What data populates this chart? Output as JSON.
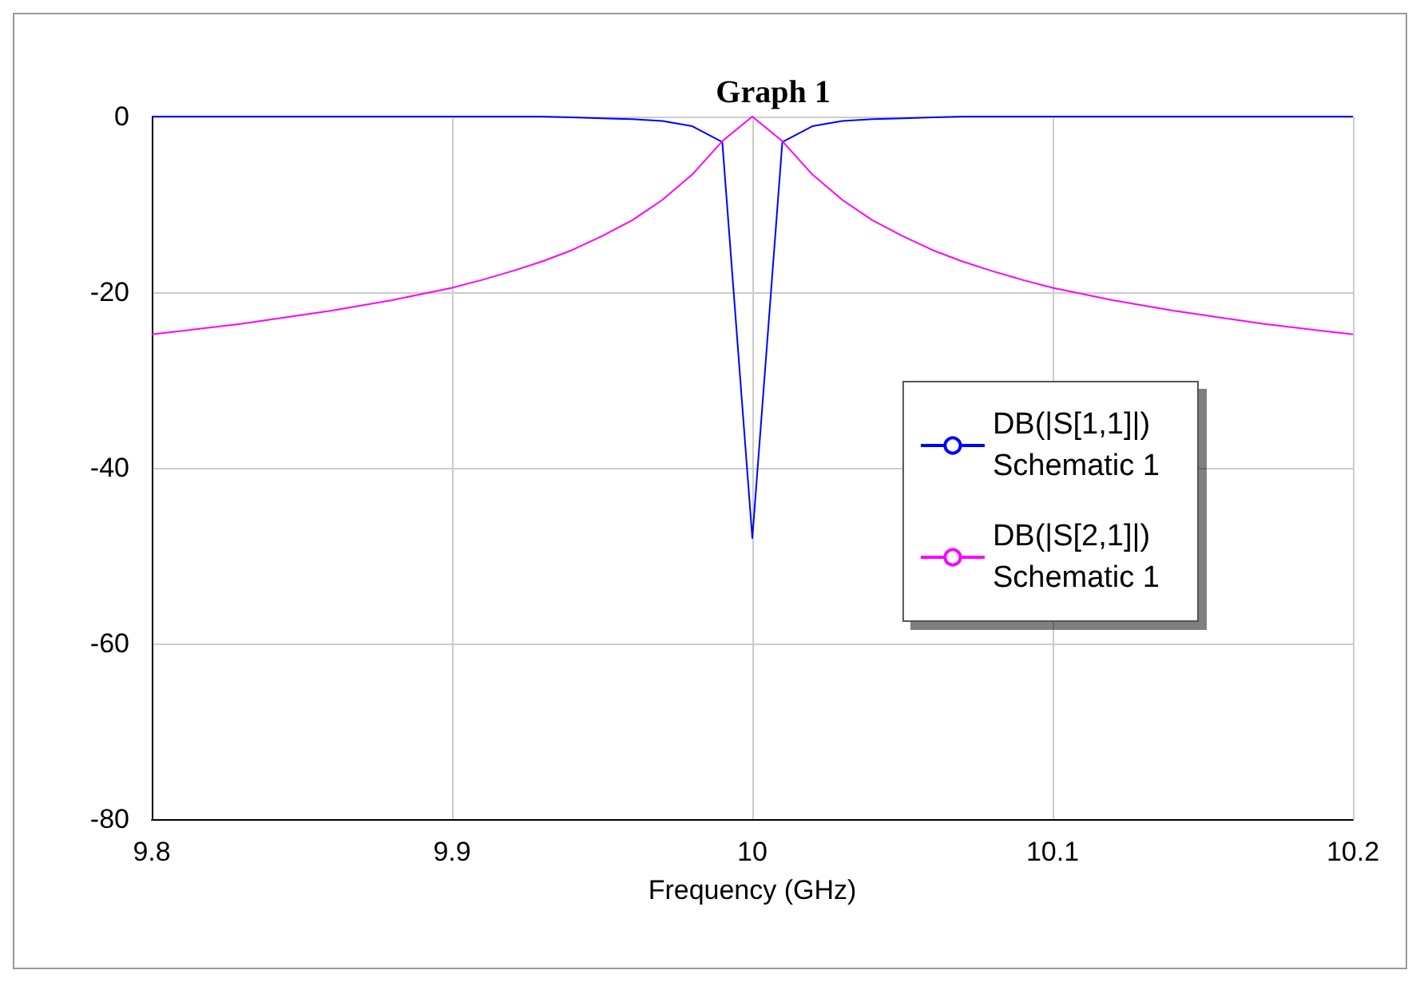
{
  "chart_data": {
    "type": "line",
    "title": "Graph 1",
    "xlabel": "Frequency (GHz)",
    "x": [
      9.8,
      9.81,
      9.82,
      9.83,
      9.84,
      9.85,
      9.86,
      9.87,
      9.88,
      9.89,
      9.9,
      9.91,
      9.92,
      9.93,
      9.94,
      9.95,
      9.96,
      9.97,
      9.98,
      9.99,
      10,
      10.01,
      10.02,
      10.03,
      10.04,
      10.05,
      10.06,
      10.07,
      10.08,
      10.09,
      10.1,
      10.11,
      10.12,
      10.13,
      10.14,
      10.15,
      10.16,
      10.17,
      10.18,
      10.19,
      10.2
    ],
    "series": [
      {
        "name": "DB(|S[1,1]|)\nSchematic 1",
        "color": "#0000ff",
        "values": [
          0,
          0,
          0,
          0,
          0,
          0,
          0,
          0,
          0,
          0,
          0,
          0,
          0,
          0,
          -0.1,
          -0.2,
          -0.3,
          -0.5,
          -1.1,
          -2.9,
          -48,
          -2.9,
          -1.1,
          -0.5,
          -0.3,
          -0.2,
          -0.1,
          0,
          0,
          0,
          0,
          0,
          0,
          0,
          0,
          0,
          0,
          0,
          0,
          0,
          0
        ]
      },
      {
        "name": "DB(|S[2,1]|)\nSchematic 1",
        "color": "#ff00ff",
        "values": [
          -24.8,
          -24.4,
          -24.0,
          -23.6,
          -23.1,
          -22.6,
          -22.1,
          -21.5,
          -20.9,
          -20.2,
          -19.5,
          -18.6,
          -17.6,
          -16.5,
          -15.2,
          -13.6,
          -11.8,
          -9.5,
          -6.6,
          -2.8,
          0,
          -2.8,
          -6.6,
          -9.5,
          -11.8,
          -13.6,
          -15.2,
          -16.5,
          -17.6,
          -18.6,
          -19.5,
          -20.2,
          -20.9,
          -21.5,
          -22.1,
          -22.6,
          -23.1,
          -23.6,
          -24.0,
          -24.4,
          -24.8
        ]
      }
    ],
    "xlim": [
      9.8,
      10.2
    ],
    "xticks": [
      9.8,
      9.9,
      10,
      10.1,
      10.2
    ],
    "ylim": [
      -80,
      0
    ],
    "yticks": [
      -80,
      -60,
      -40,
      -20,
      0
    ],
    "grid": true,
    "legend": "right"
  }
}
